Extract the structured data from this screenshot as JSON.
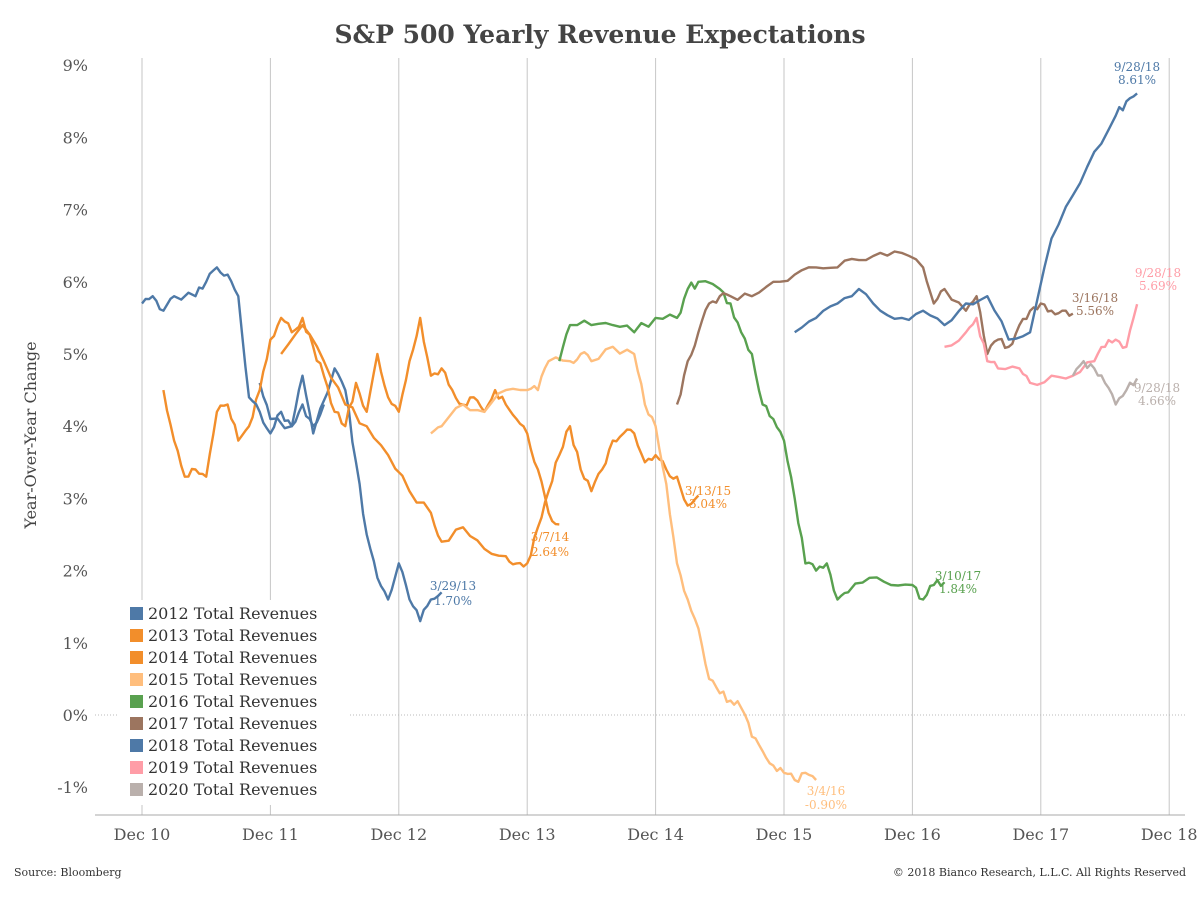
{
  "chart_data": {
    "type": "line",
    "title": "S&P 500 Yearly Revenue Expectations",
    "ylabel": "Year-Over-Year Change",
    "xlabel": "",
    "x_ticks": [
      "Dec 10",
      "Dec 11",
      "Dec 12",
      "Dec 13",
      "Dec 14",
      "Dec 15",
      "Dec 16",
      "Dec 17",
      "Dec 18"
    ],
    "y_ticks": [
      "-1%",
      "0%",
      "1%",
      "2%",
      "3%",
      "4%",
      "5%",
      "6%",
      "7%",
      "8%",
      "9%"
    ],
    "ylim": [
      -1.4,
      9.2
    ],
    "xlim": [
      "2010-10",
      "2018-12"
    ],
    "grid": "vertical",
    "legend_position": "bottom-left",
    "source": "Source: Bloomberg",
    "copyright": "© 2018 Bianco Research, L.L.C. All Rights Reserved",
    "series": [
      {
        "name": "2012 Total Revenues",
        "color": "#4e79a7",
        "points": [
          [
            "2011-11",
            4.6
          ],
          [
            "2011-12",
            4.1
          ],
          [
            "2012-02",
            4.0
          ],
          [
            "2012-03",
            4.7
          ],
          [
            "2012-04",
            3.9
          ],
          [
            "2012-06",
            4.8
          ],
          [
            "2012-07",
            4.5
          ],
          [
            "2012-08",
            3.5
          ],
          [
            "2012-09",
            2.5
          ],
          [
            "2012-10",
            1.9
          ],
          [
            "2012-11",
            1.6
          ],
          [
            "2012-12",
            2.1
          ],
          [
            "2013-01",
            1.6
          ],
          [
            "2013-02",
            1.3
          ],
          [
            "2013-03",
            1.6
          ],
          [
            "2013-04",
            1.7
          ]
        ]
      },
      {
        "name": "2013 Total Revenues",
        "color": "#f28e2b",
        "points": [
          [
            "2011-02",
            4.5
          ],
          [
            "2011-03",
            3.8
          ],
          [
            "2011-04",
            3.3
          ],
          [
            "2011-05",
            3.4
          ],
          [
            "2011-06",
            3.3
          ],
          [
            "2011-07",
            4.2
          ],
          [
            "2011-08",
            4.3
          ],
          [
            "2011-09",
            3.8
          ],
          [
            "2011-10",
            4.0
          ],
          [
            "2011-11",
            4.5
          ],
          [
            "2011-12",
            5.2
          ],
          [
            "2012-01",
            5.5
          ],
          [
            "2012-02",
            5.3
          ],
          [
            "2012-03",
            5.5
          ],
          [
            "2012-04",
            5.1
          ],
          [
            "2012-05",
            4.7
          ],
          [
            "2012-06",
            4.2
          ],
          [
            "2012-07",
            4.0
          ],
          [
            "2012-08",
            4.6
          ],
          [
            "2012-09",
            4.2
          ],
          [
            "2012-10",
            5.0
          ],
          [
            "2012-11",
            4.4
          ],
          [
            "2012-12",
            4.2
          ],
          [
            "2013-01",
            4.9
          ],
          [
            "2013-02",
            5.5
          ],
          [
            "2013-03",
            4.7
          ],
          [
            "2013-04",
            4.8
          ],
          [
            "2013-05",
            4.5
          ],
          [
            "2013-06",
            4.3
          ],
          [
            "2013-07",
            4.4
          ],
          [
            "2013-08",
            4.2
          ],
          [
            "2013-09",
            4.5
          ],
          [
            "2013-10",
            4.3
          ],
          [
            "2013-11",
            4.1
          ],
          [
            "2013-12",
            3.9
          ],
          [
            "2014-01",
            3.4
          ],
          [
            "2014-02",
            2.8
          ],
          [
            "2014-03",
            2.64
          ]
        ]
      },
      {
        "name": "2014 Total Revenues",
        "color": "#f28e2b",
        "points": [
          [
            "2012-01",
            5.0
          ],
          [
            "2012-03",
            5.4
          ],
          [
            "2012-05",
            4.9
          ],
          [
            "2012-07",
            4.3
          ],
          [
            "2012-09",
            4.0
          ],
          [
            "2012-11",
            3.6
          ],
          [
            "2013-01",
            3.1
          ],
          [
            "2013-03",
            2.8
          ],
          [
            "2013-04",
            2.4
          ],
          [
            "2013-06",
            2.6
          ],
          [
            "2013-08",
            2.3
          ],
          [
            "2013-10",
            2.2
          ],
          [
            "2013-11",
            2.1
          ],
          [
            "2013-12",
            2.1
          ],
          [
            "2014-01",
            2.6
          ],
          [
            "2014-02",
            3.1
          ],
          [
            "2014-03",
            3.6
          ],
          [
            "2014-04",
            4.0
          ],
          [
            "2014-05",
            3.4
          ],
          [
            "2014-06",
            3.1
          ],
          [
            "2014-07",
            3.4
          ],
          [
            "2014-08",
            3.8
          ],
          [
            "2014-09",
            3.9
          ],
          [
            "2014-10",
            3.9
          ],
          [
            "2014-11",
            3.5
          ],
          [
            "2014-12",
            3.6
          ],
          [
            "2015-01",
            3.4
          ],
          [
            "2015-02",
            3.3
          ],
          [
            "2015-03",
            2.9
          ],
          [
            "2015-04",
            3.04
          ]
        ]
      },
      {
        "name": "2015 Total Revenues",
        "color": "#ffbe7d",
        "points": [
          [
            "2013-03",
            3.9
          ],
          [
            "2013-04",
            4.0
          ],
          [
            "2013-06",
            4.3
          ],
          [
            "2013-08",
            4.2
          ],
          [
            "2013-10",
            4.5
          ],
          [
            "2013-12",
            4.5
          ],
          [
            "2014-01",
            4.5
          ],
          [
            "2014-02",
            4.9
          ],
          [
            "2014-04",
            4.9
          ],
          [
            "2014-05",
            5.0
          ],
          [
            "2014-06",
            4.9
          ],
          [
            "2014-08",
            5.1
          ],
          [
            "2014-10",
            5.0
          ],
          [
            "2014-11",
            4.3
          ],
          [
            "2014-12",
            4.0
          ],
          [
            "2015-01",
            3.2
          ],
          [
            "2015-02",
            2.1
          ],
          [
            "2015-03",
            1.6
          ],
          [
            "2015-04",
            1.2
          ],
          [
            "2015-05",
            0.5
          ],
          [
            "2015-06",
            0.3
          ],
          [
            "2015-07",
            0.2
          ],
          [
            "2015-08",
            0.1
          ],
          [
            "2015-09",
            -0.3
          ],
          [
            "2015-10",
            -0.5
          ],
          [
            "2015-11",
            -0.7
          ],
          [
            "2015-12",
            -0.8
          ],
          [
            "2016-01",
            -0.9
          ],
          [
            "2016-02",
            -0.8
          ],
          [
            "2016-03",
            -0.9
          ]
        ]
      },
      {
        "name": "2016 Total Revenues",
        "color": "#59a14f",
        "points": [
          [
            "2014-03",
            4.9
          ],
          [
            "2014-04",
            5.4
          ],
          [
            "2014-06",
            5.4
          ],
          [
            "2014-08",
            5.4
          ],
          [
            "2014-10",
            5.3
          ],
          [
            "2014-12",
            5.5
          ],
          [
            "2015-02",
            5.5
          ],
          [
            "2015-03",
            5.9
          ],
          [
            "2015-04",
            6.0
          ],
          [
            "2015-06",
            5.9
          ],
          [
            "2015-07",
            5.7
          ],
          [
            "2015-08",
            5.3
          ],
          [
            "2015-09",
            5.0
          ],
          [
            "2015-10",
            4.3
          ],
          [
            "2015-11",
            4.1
          ],
          [
            "2015-12",
            3.8
          ],
          [
            "2016-01",
            3.0
          ],
          [
            "2016-02",
            2.1
          ],
          [
            "2016-03",
            2.0
          ],
          [
            "2016-04",
            2.1
          ],
          [
            "2016-05",
            1.6
          ],
          [
            "2016-06",
            1.7
          ],
          [
            "2016-08",
            1.9
          ],
          [
            "2016-10",
            1.8
          ],
          [
            "2016-12",
            1.8
          ],
          [
            "2017-01",
            1.6
          ],
          [
            "2017-02",
            1.8
          ],
          [
            "2017-03",
            1.84
          ]
        ]
      },
      {
        "name": "2017 Total Revenues",
        "color": "#9c755f",
        "points": [
          [
            "2015-02",
            4.3
          ],
          [
            "2015-03",
            4.9
          ],
          [
            "2015-04",
            5.3
          ],
          [
            "2015-05",
            5.7
          ],
          [
            "2015-06",
            5.8
          ],
          [
            "2015-07",
            5.8
          ],
          [
            "2015-09",
            5.8
          ],
          [
            "2015-11",
            6.0
          ],
          [
            "2016-01",
            6.1
          ],
          [
            "2016-03",
            6.2
          ],
          [
            "2016-05",
            6.2
          ],
          [
            "2016-07",
            6.3
          ],
          [
            "2016-09",
            6.4
          ],
          [
            "2016-11",
            6.4
          ],
          [
            "2017-01",
            6.2
          ],
          [
            "2017-02",
            5.7
          ],
          [
            "2017-03",
            5.9
          ],
          [
            "2017-05",
            5.6
          ],
          [
            "2017-06",
            5.8
          ],
          [
            "2017-07",
            5.0
          ],
          [
            "2017-08",
            5.2
          ],
          [
            "2017-09",
            5.1
          ],
          [
            "2017-10",
            5.4
          ],
          [
            "2017-11",
            5.6
          ],
          [
            "2017-12",
            5.7
          ],
          [
            "2018-01",
            5.6
          ],
          [
            "2018-02",
            5.6
          ],
          [
            "2018-03",
            5.56
          ]
        ]
      },
      {
        "name": "2018 Total Revenues",
        "color": "#4e79a7",
        "points": [
          [
            "2010-12",
            5.7
          ],
          [
            "2011-01",
            5.8
          ],
          [
            "2011-02",
            5.6
          ],
          [
            "2011-03",
            5.8
          ],
          [
            "2011-05",
            5.8
          ],
          [
            "2011-06",
            6.0
          ],
          [
            "2011-07",
            6.2
          ],
          [
            "2011-08",
            6.1
          ],
          [
            "2011-09",
            5.8
          ],
          [
            "2011-10",
            4.4
          ],
          [
            "2011-11",
            4.2
          ],
          [
            "2011-12",
            3.9
          ],
          [
            "2012-01",
            4.2
          ],
          [
            "2012-02",
            4.0
          ],
          [
            "2012-03",
            4.3
          ],
          [
            "2012-04",
            4.0
          ],
          [
            "2012-05",
            4.3
          ],
          [
            "2016-01",
            5.3
          ],
          [
            "2016-03",
            5.5
          ],
          [
            "2016-05",
            5.7
          ],
          [
            "2016-07",
            5.9
          ],
          [
            "2016-09",
            5.6
          ],
          [
            "2016-11",
            5.5
          ],
          [
            "2017-01",
            5.6
          ],
          [
            "2017-03",
            5.4
          ],
          [
            "2017-05",
            5.7
          ],
          [
            "2017-07",
            5.8
          ],
          [
            "2017-09",
            5.2
          ],
          [
            "2017-11",
            5.3
          ],
          [
            "2018-01",
            6.6
          ],
          [
            "2018-03",
            7.2
          ],
          [
            "2018-05",
            7.8
          ],
          [
            "2018-07",
            8.3
          ],
          [
            "2018-08",
            8.5
          ],
          [
            "2018-09",
            8.61
          ]
        ]
      },
      {
        "name": "2019 Total Revenues",
        "color": "#ff9da7",
        "points": [
          [
            "2017-03",
            5.1
          ],
          [
            "2017-05",
            5.3
          ],
          [
            "2017-06",
            5.5
          ],
          [
            "2017-07",
            4.9
          ],
          [
            "2017-08",
            4.8
          ],
          [
            "2017-10",
            4.8
          ],
          [
            "2017-11",
            4.6
          ],
          [
            "2018-01",
            4.7
          ],
          [
            "2018-03",
            4.7
          ],
          [
            "2018-05",
            4.9
          ],
          [
            "2018-06",
            5.1
          ],
          [
            "2018-07",
            5.2
          ],
          [
            "2018-08",
            5.1
          ],
          [
            "2018-09",
            5.69
          ]
        ]
      },
      {
        "name": "2020 Total Revenues",
        "color": "#bab0ac",
        "points": [
          [
            "2018-03",
            4.7
          ],
          [
            "2018-04",
            4.9
          ],
          [
            "2018-05",
            4.8
          ],
          [
            "2018-06",
            4.6
          ],
          [
            "2018-07",
            4.3
          ],
          [
            "2018-08",
            4.5
          ],
          [
            "2018-09",
            4.66
          ]
        ]
      }
    ],
    "annotations": [
      {
        "date": "3/29/13",
        "value": "1.70%",
        "color": "#4e79a7"
      },
      {
        "date": "3/7/14",
        "value": "2.64%",
        "color": "#f28e2b"
      },
      {
        "date": "3/13/15",
        "value": "3.04%",
        "color": "#f28e2b"
      },
      {
        "date": "3/4/16",
        "value": "-0.90%",
        "color": "#ffbe7d"
      },
      {
        "date": "3/10/17",
        "value": "1.84%",
        "color": "#59a14f"
      },
      {
        "date": "3/16/18",
        "value": "5.56%",
        "color": "#9c755f"
      },
      {
        "date": "9/28/18",
        "value": "8.61%",
        "color": "#4e79a7"
      },
      {
        "date": "9/28/18",
        "value": "5.69%",
        "color": "#ff9da7"
      },
      {
        "date": "9/28/18",
        "value": "4.66%",
        "color": "#bab0ac"
      }
    ]
  }
}
